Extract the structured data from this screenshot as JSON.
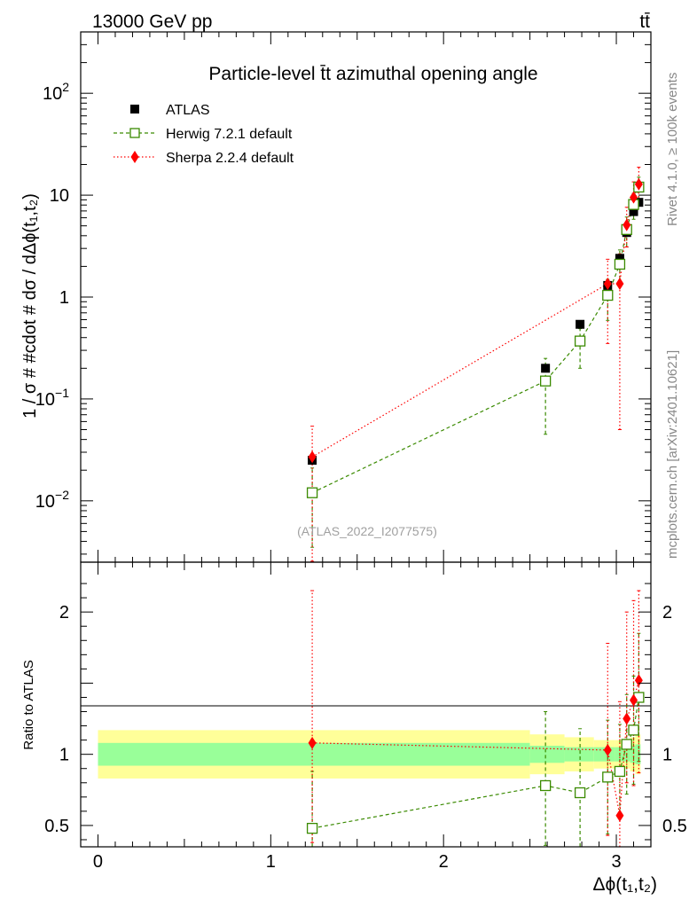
{
  "header": {
    "energy_label": "13000 GeV pp",
    "process_label": "tt̄"
  },
  "side_labels": {
    "rivet": "Rivet 4.1.0, ≥ 100k events",
    "source": "mcplots.cern.ch [arXiv:2401.10621]"
  },
  "colors": {
    "atlas": "#000000",
    "herwig": "#3a8a00",
    "sherpa": "#ff0000",
    "band_inner": "#99ff99",
    "band_outer": "#ffff99"
  },
  "chart_data": [
    {
      "type": "scatter",
      "panel": "main",
      "title": "Particle-level t̄t azimuthal opening angle",
      "watermark": "(ATLAS_2022_I2077575)",
      "xlabel": "Δϕ(t₁,t₂)",
      "ylabel": "1 / σ # #cdot # dσ / dΔϕ(t₁,t₂)",
      "yscale": "log",
      "xlim": [
        -0.1,
        3.2
      ],
      "ylim": [
        0.0025,
        400
      ],
      "yticks": [
        {
          "value": 0.01,
          "base": "10",
          "exp": "−2"
        },
        {
          "value": 0.1,
          "base": "10",
          "exp": "−1"
        },
        {
          "value": 1,
          "base": "1",
          "exp": ""
        },
        {
          "value": 10,
          "base": "10",
          "exp": ""
        },
        {
          "value": 100,
          "base": "10",
          "exp": "2"
        }
      ],
      "legend": [
        "ATLAS",
        "Herwig 7.2.1 default",
        "Sherpa 2.2.4 default"
      ],
      "series": [
        {
          "name": "ATLAS",
          "marker": "square",
          "line": "none",
          "x": [
            1.24,
            2.59,
            2.79,
            2.95,
            3.02,
            3.06,
            3.1,
            3.13
          ],
          "y": [
            0.025,
            0.2,
            0.54,
            1.3,
            2.4,
            4.3,
            6.9,
            8.5
          ]
        },
        {
          "name": "Herwig 7.2.1 default",
          "marker": "open-square",
          "line": "dashed",
          "x": [
            1.24,
            2.59,
            2.79,
            2.95,
            3.02,
            3.06,
            3.1,
            3.13
          ],
          "y": [
            0.012,
            0.15,
            0.37,
            1.04,
            2.1,
            4.6,
            8.1,
            12.0
          ],
          "err_low": [
            0.0085,
            0.105,
            0.17,
            0.45,
            0.8,
            1.5,
            2.3,
            3.0
          ],
          "err_high": [
            0.009,
            0.1,
            0.12,
            0.45,
            0.8,
            1.5,
            2.3,
            3.0
          ]
        },
        {
          "name": "Sherpa 2.2.4 default",
          "marker": "diamond",
          "line": "dotted",
          "x": [
            1.24,
            2.95,
            3.02,
            3.06,
            3.1,
            3.13
          ],
          "y": [
            0.027,
            1.35,
            1.35,
            5.1,
            9.5,
            12.8
          ],
          "err_low": [
            0.026,
            1.0,
            1.3,
            2.0,
            3.0,
            4.0
          ],
          "err_high": [
            0.027,
            1.0,
            1.3,
            2.5,
            4.0,
            6.0
          ]
        }
      ]
    },
    {
      "type": "scatter",
      "panel": "ratio",
      "ylabel": "Ratio to ATLAS",
      "xlabel": "Δϕ(t₁,t₂)",
      "xlim": [
        -0.1,
        3.2
      ],
      "ylim": [
        0.35,
        2.35
      ],
      "xticks": [
        {
          "value": 0,
          "label": "0"
        },
        {
          "value": 1,
          "label": "1"
        },
        {
          "value": 2,
          "label": "2"
        },
        {
          "value": 3,
          "label": "3"
        }
      ],
      "yticks": [
        {
          "value": 0.5,
          "label": "0.5"
        },
        {
          "value": 1,
          "label": "1"
        },
        {
          "value": 2,
          "label": "2"
        }
      ],
      "bands": {
        "edges": [
          0.0,
          2.5,
          2.7,
          2.87,
          2.99,
          3.04,
          3.08,
          3.11,
          3.14
        ],
        "inner": [
          [
            0.92,
            1.08
          ],
          [
            0.94,
            1.06
          ],
          [
            0.95,
            1.05
          ],
          [
            0.95,
            1.05
          ],
          [
            0.95,
            1.05
          ],
          [
            0.95,
            1.05
          ],
          [
            0.94,
            1.06
          ],
          [
            0.93,
            1.07
          ]
        ],
        "outer": [
          [
            0.83,
            1.17
          ],
          [
            0.86,
            1.14
          ],
          [
            0.88,
            1.12
          ],
          [
            0.9,
            1.1
          ],
          [
            0.9,
            1.1
          ],
          [
            0.9,
            1.1
          ],
          [
            0.88,
            1.12
          ],
          [
            0.86,
            1.14
          ]
        ]
      },
      "series": [
        {
          "name": "Herwig 7.2.1 default",
          "marker": "open-square",
          "line": "dashed",
          "x": [
            1.24,
            2.59,
            2.79,
            2.95,
            3.02,
            3.06,
            3.1,
            3.13
          ],
          "y": [
            0.48,
            0.78,
            0.73,
            0.84,
            0.88,
            1.07,
            1.17,
            1.4
          ],
          "err_low": [
            0.13,
            0.42,
            0.38,
            0.4,
            0.33,
            0.35,
            0.38,
            0.45
          ],
          "err_high": [
            0.4,
            0.52,
            0.45,
            0.4,
            0.33,
            0.35,
            0.38,
            0.45
          ]
        },
        {
          "name": "Sherpa 2.2.4 default",
          "marker": "diamond",
          "line": "dotted",
          "x": [
            1.24,
            2.95,
            3.02,
            3.06,
            3.1,
            3.13
          ],
          "y": [
            1.08,
            1.03,
            0.57,
            1.25,
            1.38,
            1.52
          ],
          "err_low": [
            0.7,
            0.6,
            0.5,
            0.45,
            0.6,
            0.65
          ],
          "err_high": [
            1.08,
            0.75,
            0.8,
            0.75,
            0.7,
            0.65
          ]
        }
      ]
    }
  ]
}
